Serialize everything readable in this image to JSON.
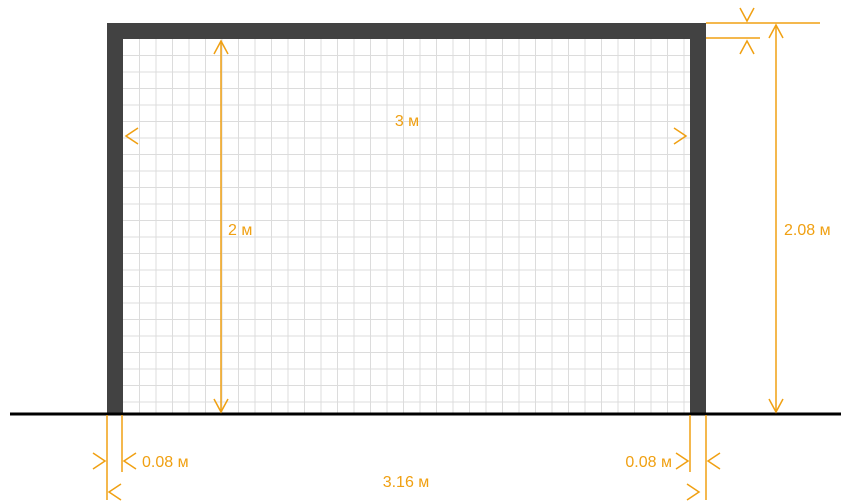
{
  "diagram": {
    "colors": {
      "frame": "#424242",
      "net": "#dcdcdc",
      "ground": "#000000",
      "dimension": "#f0a012"
    },
    "dimensions": {
      "inner_width": "3 м",
      "inner_height": "2 м",
      "outer_height": "2.08 м",
      "left_post": "0.08 м",
      "right_post": "0.08 м",
      "outer_width": "3.16 м"
    }
  }
}
